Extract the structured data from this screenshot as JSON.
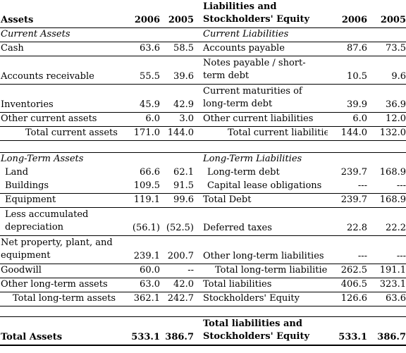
{
  "header": {
    "assets": "Assets",
    "y2006": "2006",
    "y2005": "2005",
    "liabilities": "Liabilities and Stockholders' Equity",
    "ry2006": "2006",
    "ry2005": "2005"
  },
  "section1": {
    "left": "Current  Assets",
    "right": "Current  Liabilities"
  },
  "current_rows": [
    {
      "l": "Cash",
      "l06": "63.6",
      "l05": "58.5",
      "r": "Accounts payable",
      "r06": "87.6",
      "r05": "73.5"
    },
    {
      "l": "Accounts receivable",
      "l06": "55.5",
      "l05": "39.6",
      "r": "Notes payable / short-term debt",
      "r06": "10.5",
      "r05": "9.6"
    },
    {
      "l": "Inventories",
      "l06": "45.9",
      "l05": "42.9",
      "r": "Current maturities of long-term debt",
      "r06": "39.9",
      "r05": "36.9"
    },
    {
      "l": "Other current assets",
      "l06": "6.0",
      "l05": "3.0",
      "r": "Other current liabilities",
      "r06": "6.0",
      "r05": "12.0"
    },
    {
      "l": "Total current assets",
      "l06": "171.0",
      "l05": "144.0",
      "r": "Total current liabilities",
      "r06": "144.0",
      "r05": "132.0"
    }
  ],
  "section2": {
    "left": "Long-Term Assets",
    "right": "Long-Term Liabilities"
  },
  "long_rows": [
    {
      "l": "Land",
      "l06": "66.6",
      "l05": "62.1",
      "r": "Long-term debt",
      "r06": "239.7",
      "r05": "168.9"
    },
    {
      "l": "Buildings",
      "l06": "109.5",
      "l05": "91.5",
      "r": "Capital lease obligations",
      "r06": "---",
      "r05": "---"
    },
    {
      "l": "Equipment",
      "l06": "119.1",
      "l05": "99.6",
      "r": "Total Debt",
      "r06": "239.7",
      "r05": "168.9"
    },
    {
      "l": "Less accumulated depreciation",
      "l06": "(56.1)",
      "l05": "(52.5)",
      "r": "Deferred taxes",
      "r06": "22.8",
      "r05": "22.2"
    },
    {
      "l": "Net property, plant, and equipment",
      "l06": "239.1",
      "l05": "200.7",
      "r": "Other long-term liabilities",
      "r06": "---",
      "r05": "---"
    },
    {
      "l": "Goodwill",
      "l06": "60.0",
      "l05": "--",
      "r": "Total long-term liabilities",
      "r06": "262.5",
      "r05": "191.1"
    },
    {
      "l": "Other long-term assets",
      "l06": "63.0",
      "l05": "42.0",
      "r": "Total liabilities",
      "r06": "406.5",
      "r05": "323.1"
    },
    {
      "l": "Total long-term assets",
      "l06": "362.1",
      "l05": "242.7",
      "r": "Stockholders' Equity",
      "r06": "126.6",
      "r05": "63.6"
    }
  ],
  "totals": {
    "l": "Total Assets",
    "l06": "533.1",
    "l05": "386.7",
    "r": "Total liabilities and Stockholders' Equity",
    "r06": "533.1",
    "r05": "386.7"
  }
}
